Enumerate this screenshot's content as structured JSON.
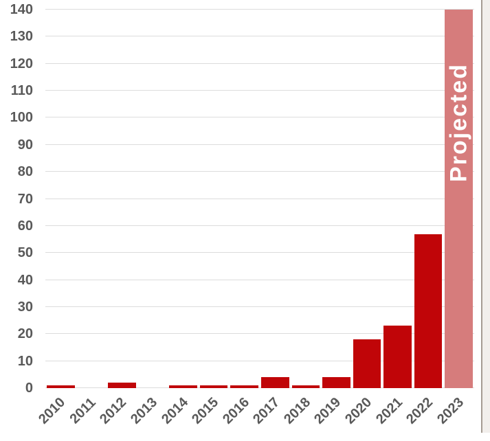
{
  "chart_data": {
    "type": "bar",
    "title": "",
    "xlabel": "",
    "ylabel": "",
    "categories": [
      "2010",
      "2011",
      "2012",
      "2013",
      "2014",
      "2015",
      "2016",
      "2017",
      "2018",
      "2019",
      "2020",
      "2021",
      "2022",
      "2023"
    ],
    "values": [
      1,
      0,
      2,
      0,
      1,
      1,
      1,
      4,
      1,
      4,
      18,
      23,
      57,
      140
    ],
    "ylim": [
      0,
      140
    ],
    "ytick_step": 10,
    "ytick_labels": [
      "0",
      "10",
      "20",
      "30",
      "40",
      "50",
      "60",
      "70",
      "80",
      "90",
      "100",
      "110",
      "120",
      "130",
      "140"
    ],
    "grid": true,
    "legend": false,
    "annotation": {
      "text": "Projected",
      "category": "2023"
    },
    "colors": {
      "bar": "#c00508",
      "projected_bar": "#d67c7c",
      "annotation_text": "#ffffff",
      "gridline": "#dcdcdc",
      "axis_label": "#595959",
      "background": "#ffffff",
      "window_edge_line": "#a59c93",
      "window_edge_panel": "#f2efec"
    }
  }
}
